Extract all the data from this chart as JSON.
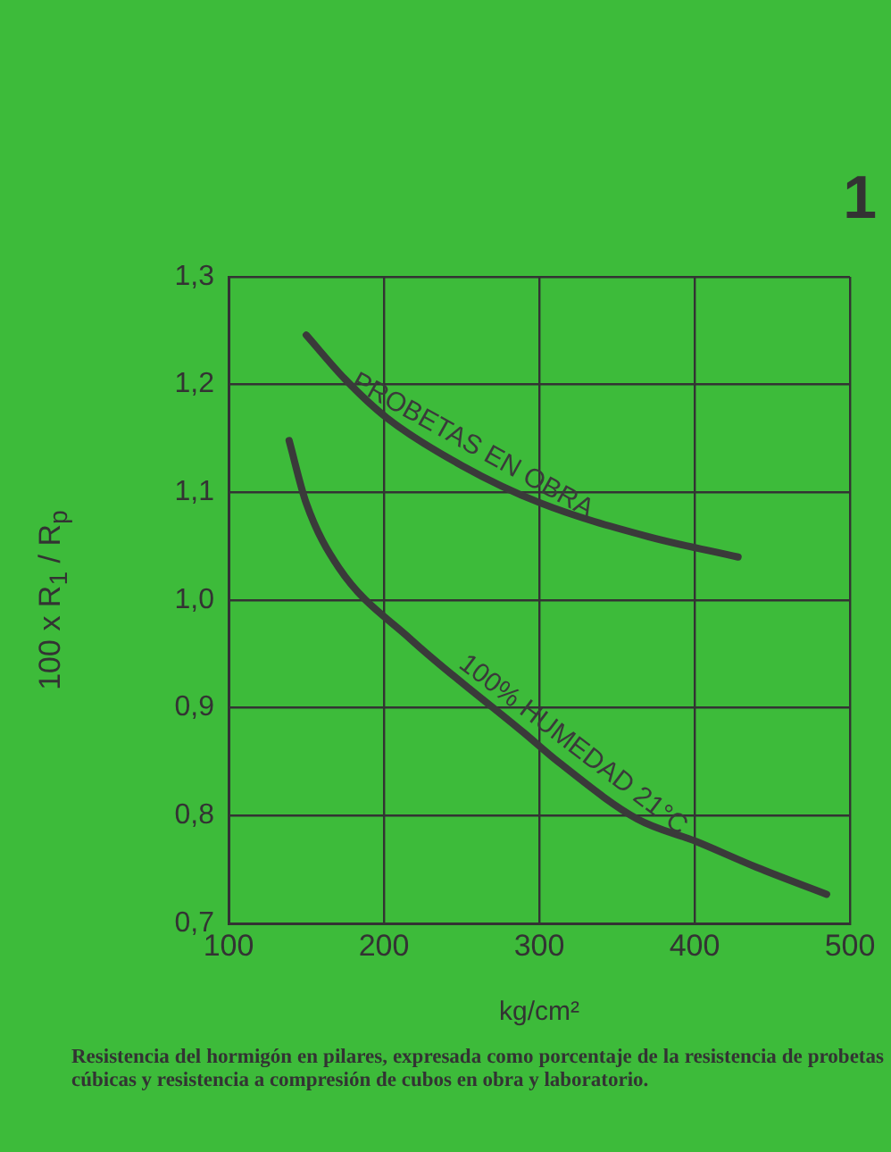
{
  "chart_data": {
    "type": "line",
    "title": "1",
    "xlabel": "kg/cm²",
    "ylabel": "100 x R$_{1}$ / R$_{p}$",
    "xlim": [
      100,
      500
    ],
    "xticks": [
      100,
      200,
      300,
      400,
      500
    ],
    "ylim": [
      0.7,
      1.3
    ],
    "yticks": [
      {
        "value": 0.7,
        "label": "0,7"
      },
      {
        "value": 0.8,
        "label": "0,8"
      },
      {
        "value": 0.9,
        "label": "0,9"
      },
      {
        "value": 1.0,
        "label": "1,0"
      },
      {
        "value": 1.1,
        "label": "1,1"
      },
      {
        "value": 1.2,
        "label": "1,2"
      },
      {
        "value": 1.3,
        "label": "1,3"
      }
    ],
    "grid": true,
    "legend": false,
    "marker": "none",
    "line_style": "solid",
    "series": [
      {
        "name": "PROBETAS EN OBRA",
        "color": "#3a3a3a",
        "x": [
          150,
          175,
          202,
          250,
          301,
          370,
          428
        ],
        "values": [
          1.246,
          1.205,
          1.169,
          1.125,
          1.09,
          1.059,
          1.04
        ]
      },
      {
        "name": "100% HUMEDAD 21°C",
        "color": "#3a3a3a",
        "x": [
          139,
          150,
          171,
          217,
          290,
          313,
          363,
          401,
          440,
          485
        ],
        "values": [
          1.148,
          1.09,
          1.03,
          0.964,
          0.877,
          0.849,
          0.797,
          0.776,
          0.752,
          0.727
        ]
      }
    ],
    "annotations": [
      "Resistencia del hormigón en pilares, expresada como porcentaje de la resistencia de probetas cúbicas y resistencia a compresión de cubos en obra y laboratorio."
    ]
  }
}
